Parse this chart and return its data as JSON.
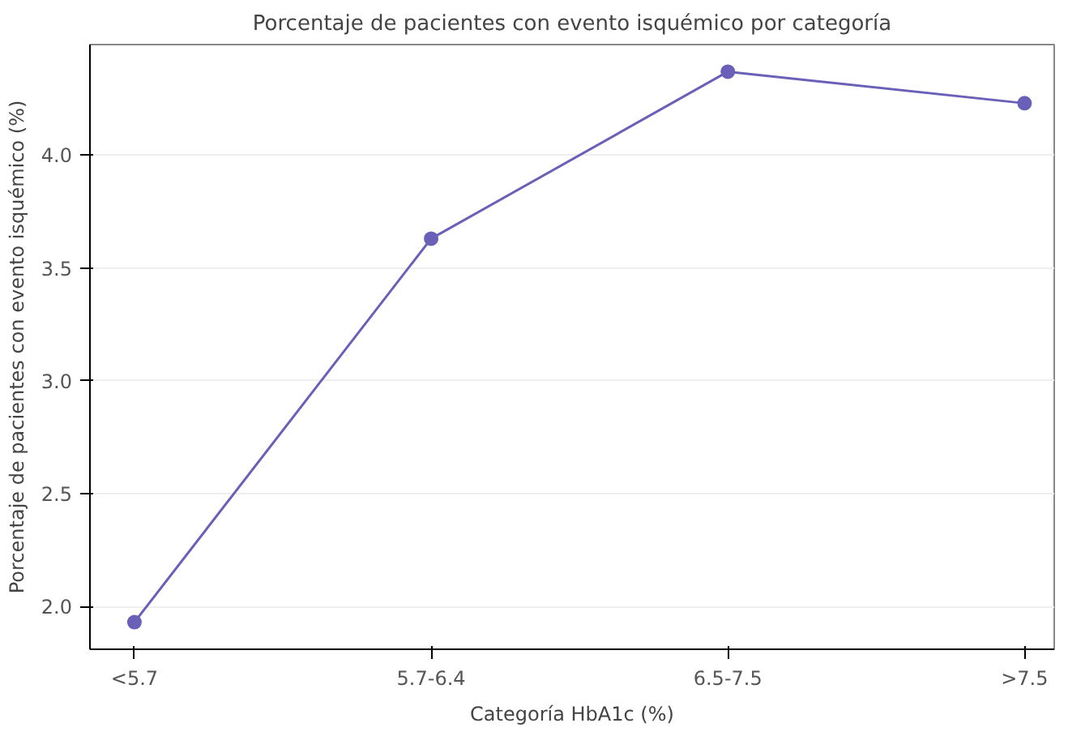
{
  "chart_data": {
    "type": "line",
    "title": "Porcentaje de pacientes con evento isquémico por categoría",
    "xlabel": "Categoría HbA1c (%)",
    "ylabel": "Porcentaje de pacientes con evento isquémico (%)",
    "categories": [
      "<5.7",
      "5.7-6.4",
      "6.5-7.5",
      ">7.5"
    ],
    "series": [
      {
        "color": "#6a60b8",
        "values": [
          1.93,
          3.63,
          4.37,
          4.23
        ]
      }
    ],
    "ylim": [
      1.81,
      4.49
    ],
    "yticks": [
      {
        "value": 2.0,
        "label": "2.0"
      },
      {
        "value": 2.5,
        "label": "2.5"
      },
      {
        "value": 3.0,
        "label": "3.0"
      },
      {
        "value": 3.5,
        "label": "3.5"
      },
      {
        "value": 4.0,
        "label": "4.0"
      }
    ],
    "grid": "y",
    "marker": "circle",
    "line_style": "solid"
  }
}
